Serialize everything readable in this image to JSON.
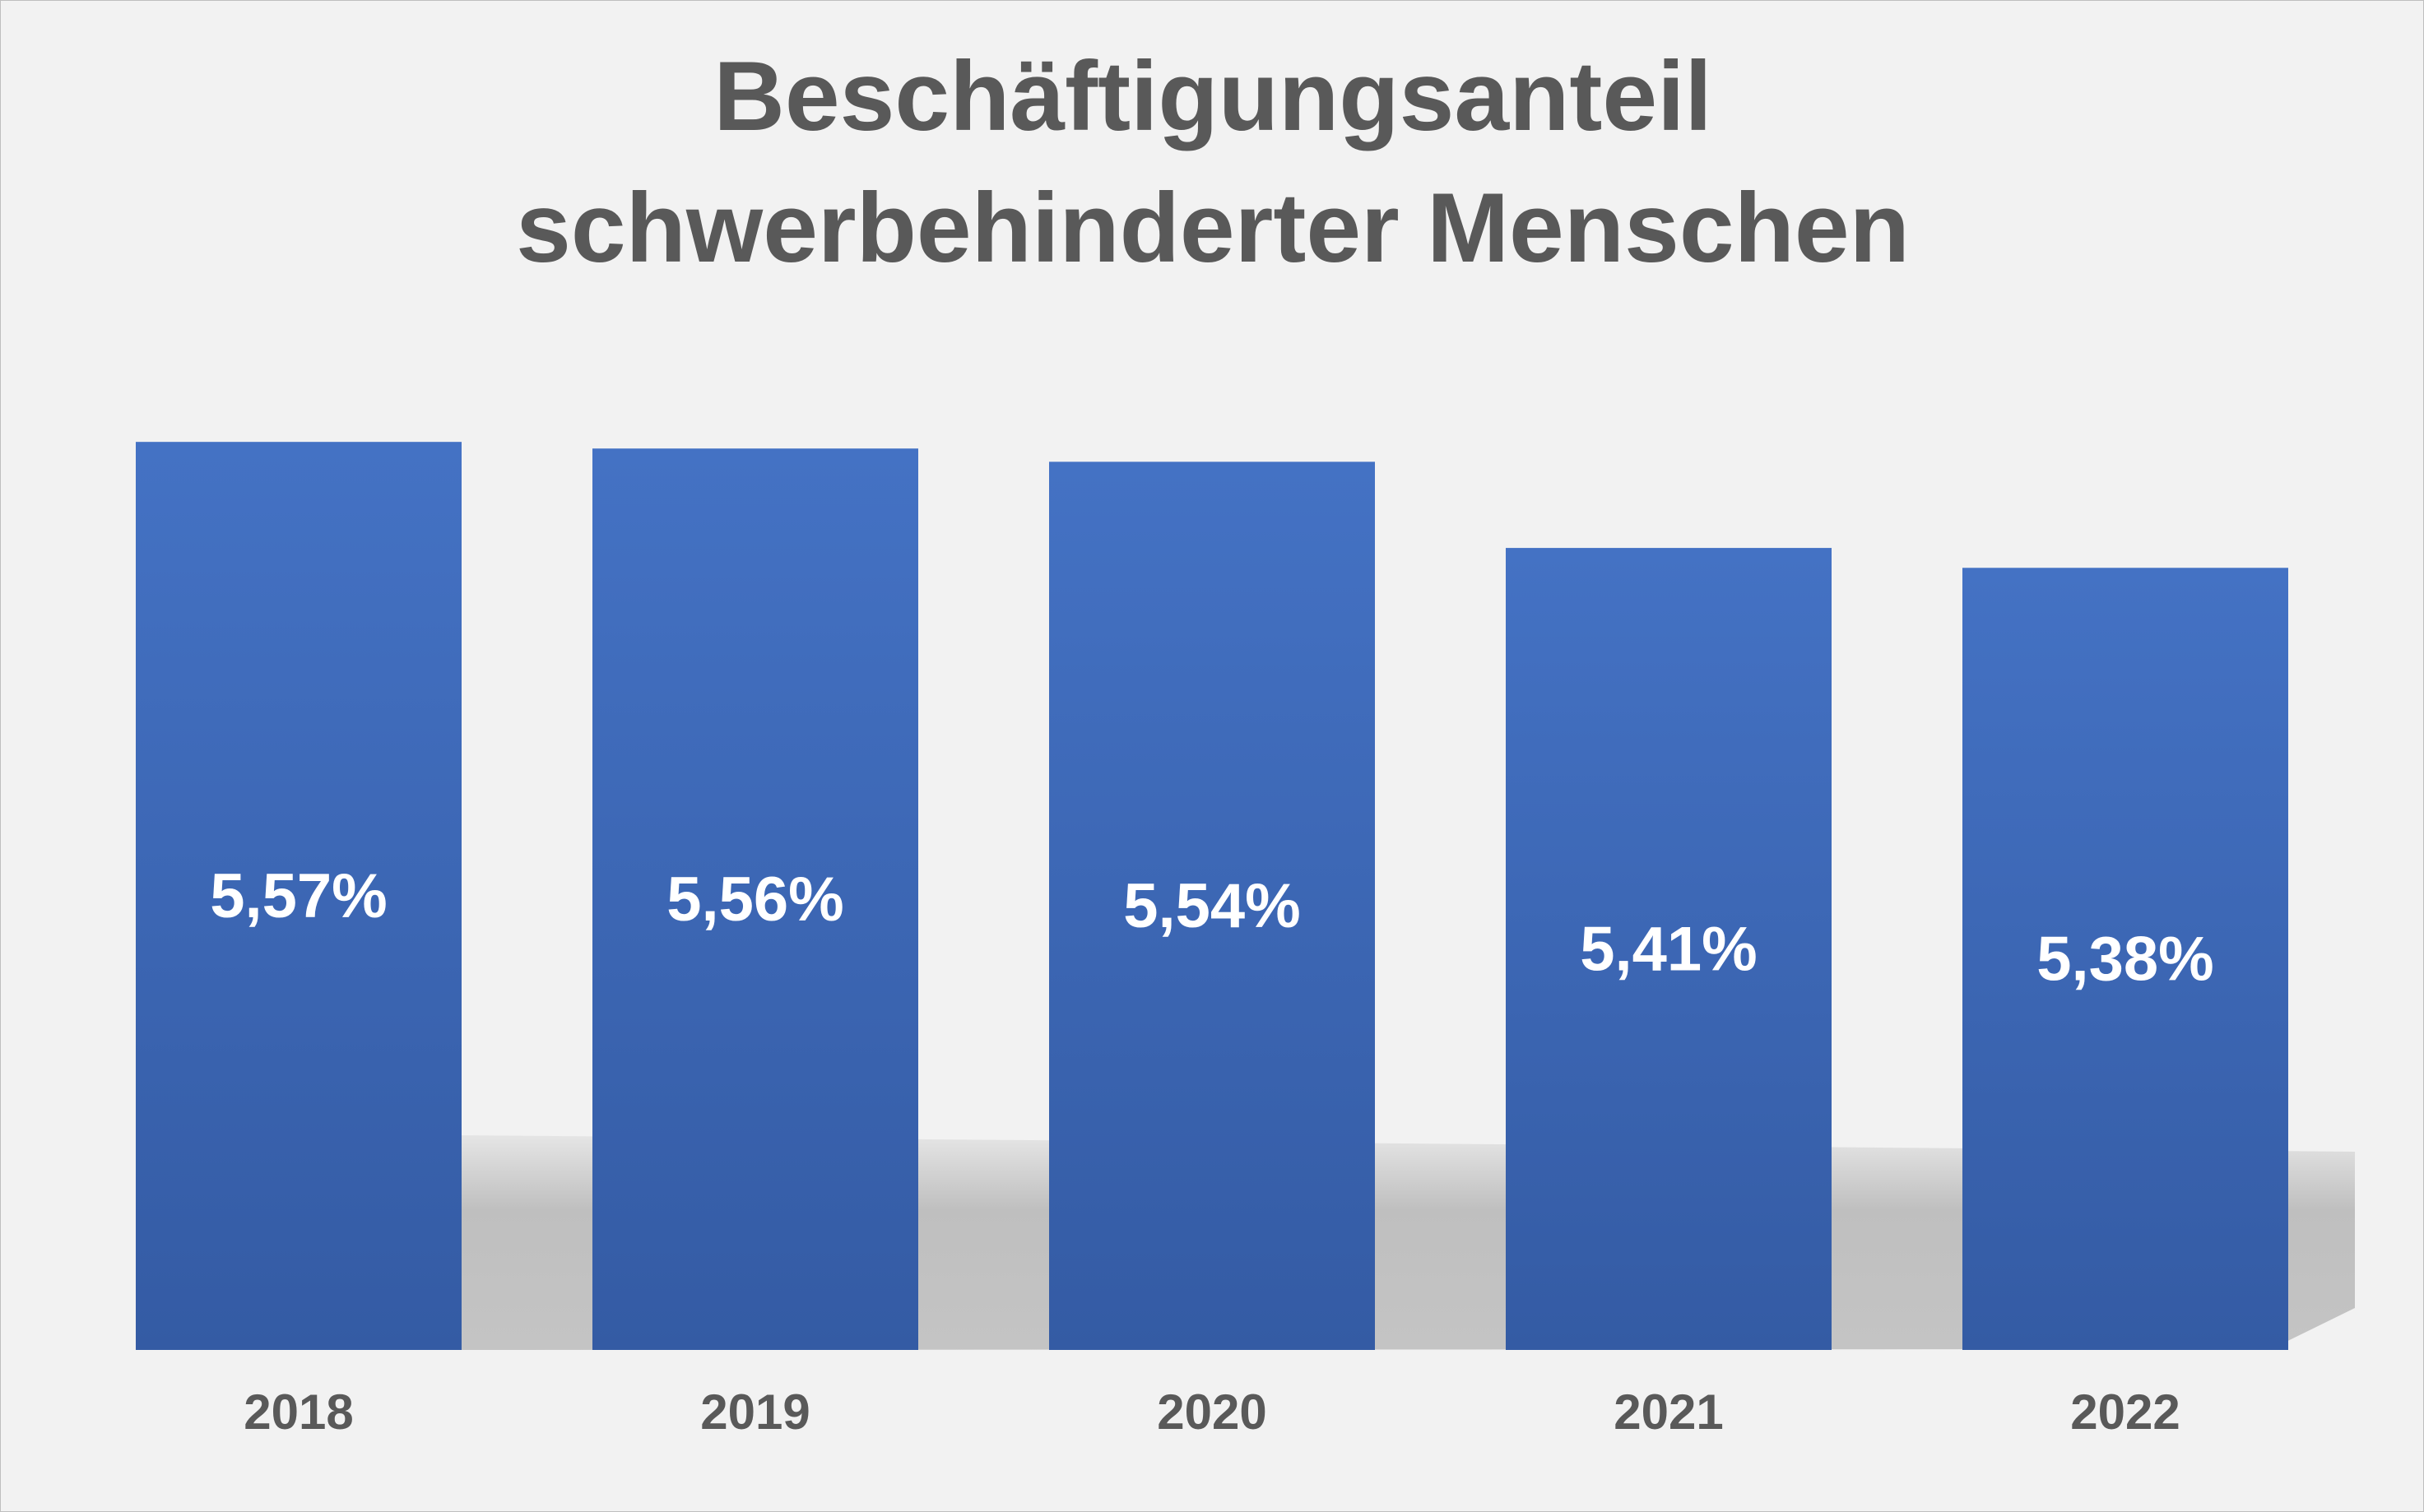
{
  "chart_data": {
    "type": "bar",
    "title": "Beschäftigungsanteil schwerbehinderter Menschen",
    "title_lines": [
      "Beschäftigungsanteil",
      "schwerbehinderter Menschen"
    ],
    "categories": [
      "2018",
      "2019",
      "2020",
      "2021",
      "2022"
    ],
    "values": [
      5.57,
      5.56,
      5.54,
      5.41,
      5.38
    ],
    "value_labels": [
      "5,57%",
      "5,56%",
      "5,54%",
      "5,41%",
      "5,38%"
    ],
    "xlabel": "",
    "ylabel": "",
    "ylim": [
      4.2,
      5.6
    ],
    "grid": false,
    "legend": "none",
    "colors": {
      "bar_top": "#4472c4",
      "bar_bottom": "#345ba4",
      "background": "#f2f2f2",
      "text": "#595959",
      "value_text": "#ffffff",
      "shadow": "#bfbfbf"
    }
  }
}
